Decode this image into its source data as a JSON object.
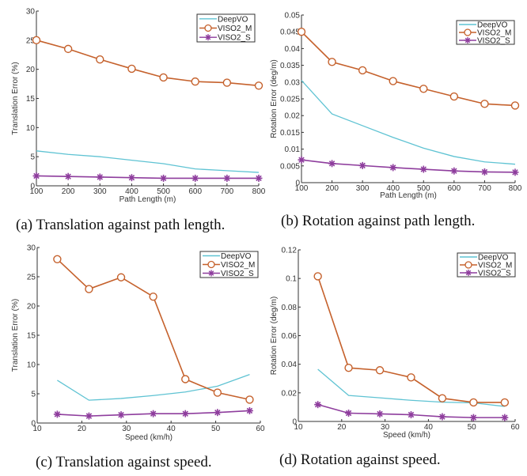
{
  "colors": {
    "DeepVO": "#5fc3d3",
    "VISO2_M": "#c5612c",
    "VISO2_S": "#8e3d9d",
    "axis": "#333333"
  },
  "chart_data": [
    {
      "id": "a",
      "type": "line",
      "caption": "(a) Translation against path length.",
      "title": "",
      "xlabel": "Path Length (m)",
      "ylabel": "Translation Error (%)",
      "x": [
        100,
        200,
        300,
        400,
        500,
        600,
        700,
        800
      ],
      "xlim": [
        100,
        800
      ],
      "ylim": [
        0,
        30
      ],
      "xticks": [
        100,
        200,
        300,
        400,
        500,
        600,
        700,
        800
      ],
      "yticks": [
        0,
        5,
        10,
        15,
        20,
        25,
        30
      ],
      "ytick_labels": [
        "0",
        "5",
        "10",
        "15",
        "20",
        "25",
        "30"
      ],
      "grid": false,
      "legend_position": "top-right",
      "series": [
        {
          "name": "DeepVO",
          "marker": "none",
          "values": [
            6.0,
            5.4,
            5.0,
            4.4,
            3.8,
            2.9,
            2.6,
            2.3
          ]
        },
        {
          "name": "VISO2_M",
          "marker": "circle",
          "values": [
            25.0,
            23.5,
            21.7,
            20.1,
            18.6,
            17.9,
            17.7,
            17.2
          ]
        },
        {
          "name": "VISO2_S",
          "marker": "star",
          "values": [
            1.7,
            1.6,
            1.5,
            1.4,
            1.3,
            1.3,
            1.3,
            1.3
          ]
        }
      ]
    },
    {
      "id": "b",
      "type": "line",
      "caption": "(b) Rotation against path length.",
      "title": "",
      "xlabel": "Path Length (m)",
      "ylabel": "Rotation Error (deg/m)",
      "x": [
        100,
        200,
        300,
        400,
        500,
        600,
        700,
        800
      ],
      "xlim": [
        100,
        800
      ],
      "ylim": [
        0,
        0.05
      ],
      "xticks": [
        100,
        200,
        300,
        400,
        500,
        600,
        700,
        800
      ],
      "yticks": [
        0,
        0.005,
        0.01,
        0.015,
        0.02,
        0.025,
        0.03,
        0.035,
        0.04,
        0.045,
        0.05
      ],
      "ytick_labels": [
        "0",
        "0.005",
        "0.01",
        "0.015",
        "0.02",
        "0.025",
        "0.03",
        "0.035",
        "0.04",
        "0.045",
        "0.05"
      ],
      "grid": false,
      "legend_position": "top-right",
      "series": [
        {
          "name": "DeepVO",
          "marker": "none",
          "values": [
            0.0305,
            0.0205,
            0.017,
            0.0135,
            0.0103,
            0.0078,
            0.0062,
            0.0055
          ]
        },
        {
          "name": "VISO2_M",
          "marker": "circle",
          "values": [
            0.045,
            0.036,
            0.0335,
            0.0303,
            0.028,
            0.0257,
            0.0235,
            0.023
          ]
        },
        {
          "name": "VISO2_S",
          "marker": "star",
          "values": [
            0.0068,
            0.0057,
            0.0051,
            0.0045,
            0.004,
            0.0035,
            0.0032,
            0.0031
          ]
        }
      ]
    },
    {
      "id": "c",
      "type": "line",
      "caption": "(c) Translation against speed.",
      "title": "",
      "xlabel": "Speed (km/h)",
      "ylabel": "Translation Error (%)",
      "x": [
        14.5,
        21.6,
        28.8,
        36.0,
        43.2,
        50.4,
        57.6
      ],
      "xlim": [
        10,
        60
      ],
      "ylim": [
        0,
        30
      ],
      "xticks": [
        10,
        20,
        30,
        40,
        50,
        60
      ],
      "yticks": [
        0,
        5,
        10,
        15,
        20,
        25,
        30
      ],
      "ytick_labels": [
        "0",
        "5",
        "10",
        "15",
        "20",
        "25",
        "30"
      ],
      "grid": false,
      "legend_position": "top-right",
      "series": [
        {
          "name": "DeepVO",
          "marker": "none",
          "values": [
            7.3,
            3.9,
            4.2,
            4.7,
            5.3,
            6.3,
            8.3
          ]
        },
        {
          "name": "VISO2_M",
          "marker": "circle",
          "values": [
            28.0,
            22.9,
            24.9,
            21.6,
            7.5,
            5.2,
            4.0
          ]
        },
        {
          "name": "VISO2_S",
          "marker": "star",
          "values": [
            1.5,
            1.2,
            1.4,
            1.6,
            1.6,
            1.8,
            2.1
          ]
        }
      ]
    },
    {
      "id": "d",
      "type": "line",
      "caption": "(d) Rotation against speed.",
      "title": "",
      "xlabel": "Speed (km/h)",
      "ylabel": "Rotation Error (deg/m)",
      "x": [
        14.5,
        21.6,
        28.8,
        36.0,
        43.2,
        50.4,
        57.6
      ],
      "xlim": [
        10,
        60
      ],
      "ylim": [
        0,
        0.12
      ],
      "xticks": [
        10,
        20,
        30,
        40,
        50,
        60
      ],
      "yticks": [
        0,
        0.02,
        0.04,
        0.06,
        0.08,
        0.1,
        0.12
      ],
      "ytick_labels": [
        "0",
        "0.02",
        "0.04",
        "0.06",
        "0.08",
        "0.1",
        "0.12"
      ],
      "grid": false,
      "legend_position": "top-right",
      "series": [
        {
          "name": "DeepVO",
          "marker": "none",
          "values": [
            0.0365,
            0.0182,
            0.0165,
            0.0148,
            0.0135,
            0.013,
            0.0105
          ]
        },
        {
          "name": "VISO2_M",
          "marker": "circle",
          "values": [
            0.1015,
            0.0375,
            0.0358,
            0.0308,
            0.0162,
            0.0133,
            0.0133
          ]
        },
        {
          "name": "VISO2_S",
          "marker": "star",
          "values": [
            0.0118,
            0.0058,
            0.0053,
            0.0047,
            0.0033,
            0.0027,
            0.0027
          ]
        }
      ]
    }
  ]
}
